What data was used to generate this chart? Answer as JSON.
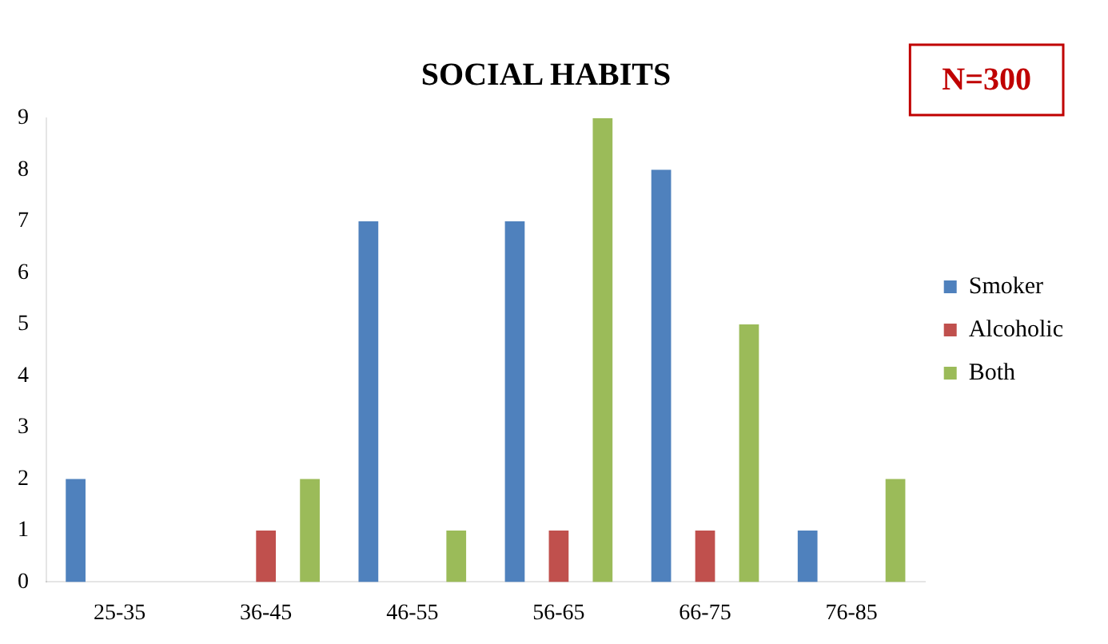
{
  "chart_data": {
    "type": "bar",
    "title": "SOCIAL HABITS",
    "annotations": [
      "N=300"
    ],
    "categories": [
      "25-35",
      "36-45",
      "46-55",
      "56-65",
      "66-75",
      "76-85"
    ],
    "series": [
      {
        "name": "Smoker",
        "color": "#4f81bd",
        "values": [
          2,
          0,
          7,
          7,
          8,
          1
        ]
      },
      {
        "name": "Alcoholic",
        "color": "#c0504d",
        "values": [
          0,
          1,
          0,
          1,
          1,
          0
        ]
      },
      {
        "name": "Both",
        "color": "#9bbb59",
        "values": [
          0,
          2,
          1,
          9,
          5,
          2
        ]
      }
    ],
    "ylim": [
      0,
      9
    ],
    "yticks": [
      0,
      1,
      2,
      3,
      4,
      5,
      6,
      7,
      8,
      9
    ],
    "grid": false,
    "legend": "right"
  }
}
